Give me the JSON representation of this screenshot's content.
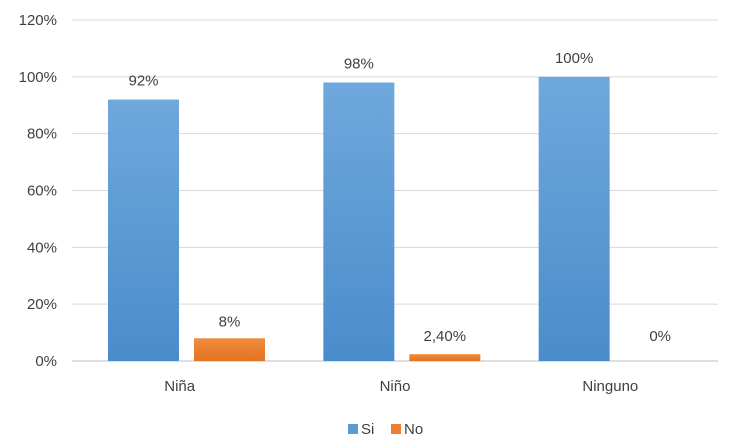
{
  "chart_data": {
    "type": "bar",
    "categories": [
      "Niña",
      "Niño",
      "Ninguno"
    ],
    "series": [
      {
        "name": "Si",
        "values": [
          92,
          98,
          100
        ],
        "labels": [
          "92%",
          "98%",
          "100%"
        ],
        "color": "#5B9BD5"
      },
      {
        "name": "No",
        "values": [
          8,
          2.4,
          0
        ],
        "labels": [
          "8%",
          "2,40%",
          "0%"
        ],
        "color": "#ED7D31"
      }
    ],
    "yticks": [
      "0%",
      "20%",
      "40%",
      "60%",
      "80%",
      "100%",
      "120%"
    ],
    "ylim": [
      0,
      120
    ],
    "grid": true,
    "legend_position": "bottom"
  }
}
